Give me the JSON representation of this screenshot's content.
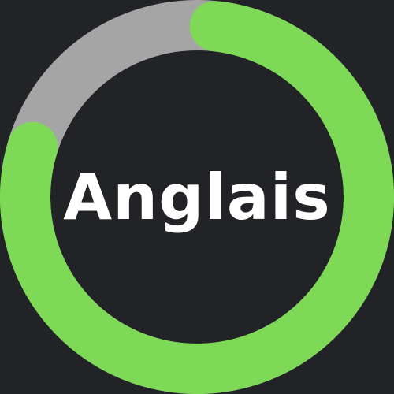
{
  "progress": {
    "label": "Anglais",
    "fraction": 0.78,
    "colors": {
      "background": "#222327",
      "track": "#a5a5a5",
      "fill": "#7ed957",
      "text": "#ffffff"
    }
  }
}
